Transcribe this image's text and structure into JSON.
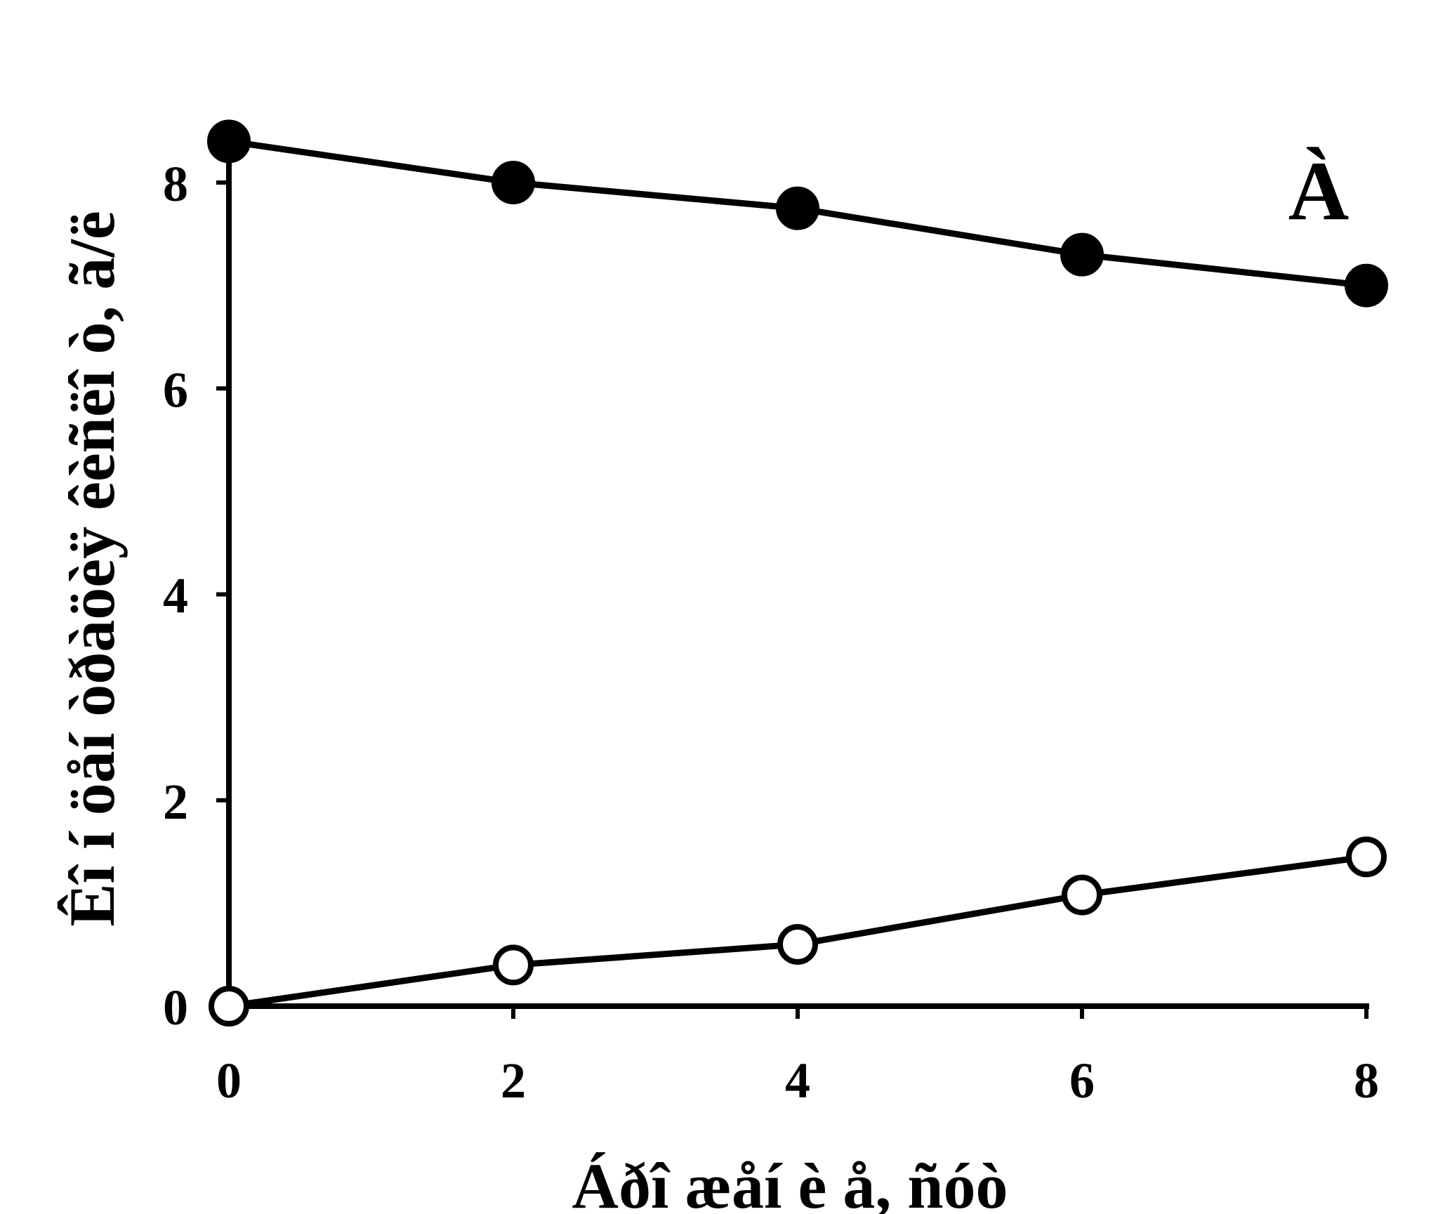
{
  "chart_data": {
    "type": "line",
    "title": "",
    "panel_label": "À",
    "xlabel": "Áðî æåí è å, ñóò",
    "ylabel": "Êî í öåí òðàöèÿ êèñëî ò, ã/ë",
    "xlim": [
      0,
      8
    ],
    "ylim": [
      0,
      8.4
    ],
    "x_ticks": [
      "0",
      "2",
      "4",
      "6",
      "8"
    ],
    "y_ticks": [
      "0",
      "2",
      "4",
      "6",
      "8"
    ],
    "grid": false,
    "legend": "none",
    "x": [
      0,
      2,
      4,
      6,
      8
    ],
    "series": [
      {
        "marker": "filled-circle",
        "color": "#000000",
        "values": [
          8.4,
          8.0,
          7.75,
          7.3,
          7.0
        ]
      },
      {
        "marker": "open-circle",
        "color": "#000000",
        "values": [
          0.0,
          0.4,
          0.6,
          1.08,
          1.45
        ]
      }
    ]
  }
}
